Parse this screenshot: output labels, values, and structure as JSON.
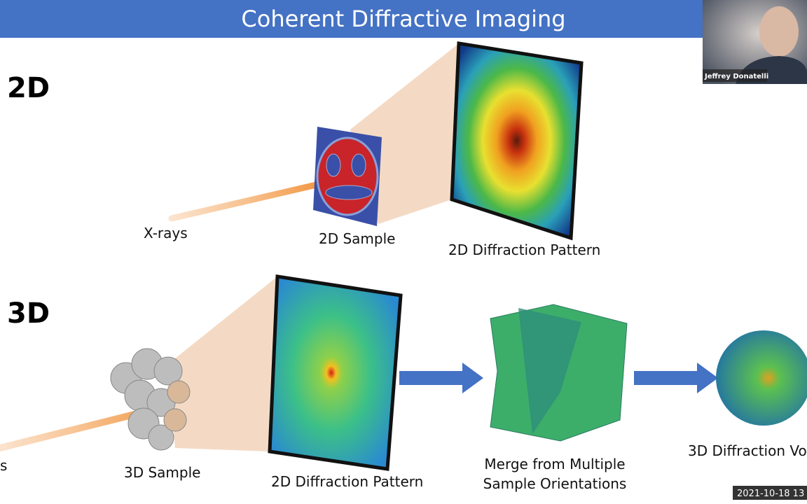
{
  "slide": {
    "title": "Coherent Diffractive Imaging",
    "sections": [
      {
        "label": "2D",
        "captions": [
          "X-rays",
          "2D Sample",
          "2D Diffraction Pattern"
        ]
      },
      {
        "label": "3D",
        "captions": [
          "s",
          "3D Sample",
          "2D Diffraction Pattern",
          "Merge from Multiple",
          "Sample Orientations",
          "3D Diffraction Vol"
        ]
      }
    ]
  },
  "video": {
    "participant": "Jeffrey Donatelli",
    "timestamp": "2021-10-18 13"
  }
}
